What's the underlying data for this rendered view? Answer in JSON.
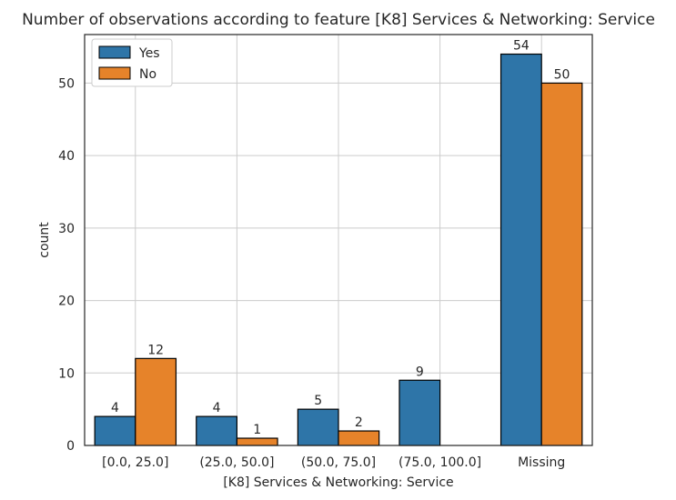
{
  "chart_data": {
    "type": "bar",
    "title": "Number of observations according to feature [K8] Services & Networking: Service",
    "xlabel": "[K8] Services & Networking: Service",
    "ylabel": "count",
    "categories": [
      "[0.0, 25.0]",
      "(25.0, 50.0]",
      "(50.0, 75.0]",
      "(75.0, 100.0]",
      "Missing"
    ],
    "series": [
      {
        "name": "Yes",
        "color": "#2e75a8",
        "values": [
          4,
          4,
          5,
          9,
          54
        ],
        "labels": [
          "4",
          "4",
          "5",
          "9",
          "54"
        ]
      },
      {
        "name": "No",
        "color": "#e6832a",
        "values": [
          12,
          1,
          2,
          0,
          50
        ],
        "labels": [
          "12",
          "1",
          "2",
          "",
          "50"
        ]
      }
    ],
    "ylim": [
      0,
      56.7
    ],
    "yticks": [
      0,
      10,
      20,
      30,
      40,
      50
    ],
    "grid": true,
    "legend_position": "top-left"
  }
}
